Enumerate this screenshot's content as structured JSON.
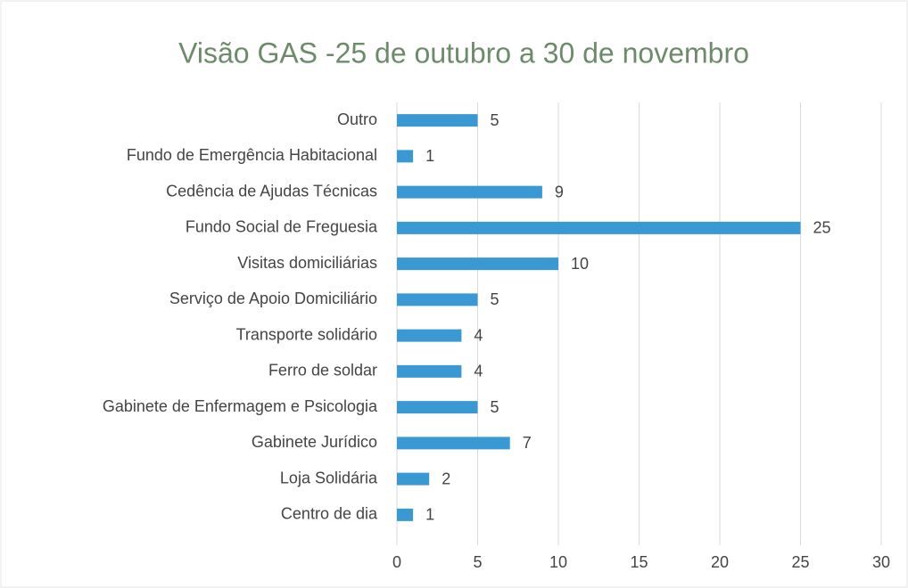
{
  "chart_data": {
    "type": "hbar",
    "title": "Visão GAS -25 de outubro a 30 de novembro",
    "categories": [
      "Outro",
      "Fundo de Emergência Habitacional",
      "Cedência de Ajudas Técnicas",
      "Fundo Social de Freguesia",
      "Visitas domiciliárias",
      "Serviço de Apoio Domiciliário",
      "Transporte solidário",
      "Ferro de soldar",
      "Gabinete de Enfermagem e Psicologia",
      "Gabinete Jurídico",
      "Loja Solidária",
      "Centro de dia"
    ],
    "values": [
      5,
      1,
      9,
      25,
      10,
      5,
      4,
      4,
      5,
      7,
      2,
      1
    ],
    "color": "#3a98d2",
    "xlim": [
      0,
      30
    ],
    "xticks": [
      0,
      5,
      10,
      15,
      20,
      25,
      30
    ],
    "grid": true
  }
}
